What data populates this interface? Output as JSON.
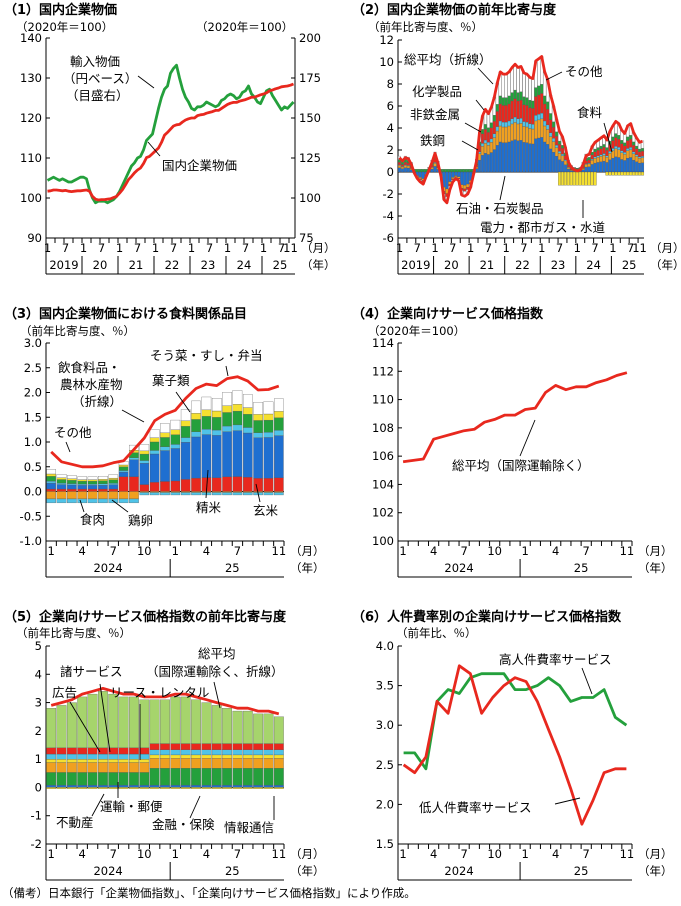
{
  "colors": {
    "red": "#e8281e",
    "green": "#24a03c",
    "blue": "#1f6fd0",
    "orange": "#f0a020",
    "cyan": "#4fc3e8",
    "yellow": "#f5e030",
    "black": "#000000"
  },
  "chart_data": [
    {
      "id": "p1",
      "type": "line",
      "title": "（1）国内企業物価",
      "left_unit": "（2020年＝100）",
      "right_unit": "（2020年＝100）",
      "ylim": [
        90,
        140
      ],
      "y_ticks": [
        "140",
        "130",
        "120",
        "110",
        "100",
        "90"
      ],
      "ylim_right": [
        75,
        200
      ],
      "y_ticks_right": [
        "200",
        "175",
        "150",
        "125",
        "100",
        "75"
      ],
      "x_month_labels": [
        "1",
        "7",
        "1",
        "7",
        "1",
        "7",
        "1",
        "7",
        "1",
        "7",
        "1",
        "7",
        "1",
        "7"
      ],
      "x_month_extra": "11",
      "x_year_labels": [
        "2019",
        "20",
        "21",
        "22",
        "23",
        "24",
        "25"
      ],
      "x_unit_month": "（月）",
      "x_unit_year": "（年）",
      "series": [
        {
          "name": "国内企業物価",
          "color": "#e8281e",
          "axis": "left",
          "values": [
            101.7,
            101.8,
            102.0,
            102.0,
            101.9,
            101.8,
            101.9,
            101.7,
            101.6,
            101.7,
            101.8,
            101.8,
            101.9,
            102.0,
            101.7,
            100.4,
            99.7,
            99.5,
            99.6,
            99.6,
            99.7,
            99.8,
            100.1,
            100.4,
            101.2,
            102.1,
            103.3,
            104.6,
            105.4,
            106.3,
            107.0,
            107.5,
            108.6,
            110.1,
            110.4,
            111.1,
            111.8,
            112.5,
            113.9,
            115.7,
            116.4,
            117.2,
            118.0,
            118.3,
            118.4,
            119.0,
            119.5,
            119.8,
            120.0,
            120.0,
            120.6,
            120.8,
            120.9,
            121.2,
            121.4,
            121.6,
            121.9,
            121.9,
            122.4,
            122.9,
            123.4,
            123.7,
            123.9,
            123.9,
            124.2,
            124.4,
            124.6,
            124.9,
            125.2,
            125.2,
            125.5,
            125.8,
            126.0,
            126.3,
            126.8,
            127.0,
            127.3,
            127.5,
            127.8,
            127.9,
            128.0,
            128.2,
            128.5
          ]
        },
        {
          "name": "輸入物価（円ベース）（目盛右）",
          "color": "#24a03c",
          "axis": "right",
          "values": [
            111,
            112,
            113,
            112,
            111,
            112,
            111,
            110,
            110,
            111,
            112,
            113,
            113,
            112,
            105,
            100,
            97,
            98,
            98,
            98,
            97,
            98,
            99,
            101,
            104,
            108,
            112,
            116,
            120,
            122,
            125,
            126,
            130,
            136,
            138,
            140,
            148,
            156,
            163,
            168,
            170,
            178,
            181,
            183,
            175,
            168,
            163,
            160,
            156,
            155,
            157,
            157,
            158,
            160,
            159,
            158,
            157,
            158,
            161,
            162,
            164,
            165,
            164,
            162,
            163,
            166,
            167,
            170,
            165,
            163,
            160,
            159,
            163,
            167,
            168,
            164,
            161,
            158,
            155,
            157,
            156,
            158,
            160
          ]
        }
      ],
      "annotations": {
        "import": [
          "輸入物価",
          "（円ベース）",
          "（目盛右）"
        ],
        "domestic": "国内企業物価"
      }
    },
    {
      "id": "p2",
      "type": "bar",
      "title": "（2）国内企業物価の前年比寄与度",
      "unit": "（前年比寄与度、％）",
      "ylim": [
        -6,
        12
      ],
      "y_ticks": [
        "12",
        "10",
        "8",
        "6",
        "4",
        "2",
        "0",
        "-2",
        "-4",
        "-6"
      ],
      "x_month_labels": [
        "1",
        "7",
        "1",
        "7",
        "1",
        "7",
        "1",
        "7",
        "1",
        "7",
        "1",
        "7",
        "1",
        "7"
      ],
      "x_month_extra": "11",
      "x_year_labels": [
        "2019",
        "20",
        "21",
        "22",
        "23",
        "24",
        "25"
      ],
      "x_unit_month": "（月）",
      "x_unit_year": "（年）",
      "segments": [
        {
          "name": "石油・石炭製品",
          "color": "#1f6fd0"
        },
        {
          "name": "化学製品",
          "color": "#f0a020"
        },
        {
          "name": "非鉄金属",
          "color": "#4fc3e8"
        },
        {
          "name": "鉄鋼",
          "color": "#e8281e"
        },
        {
          "name": "食料",
          "color": "#24a03c"
        },
        {
          "name": "電力・都市ガス・水道",
          "color": "#f5e030"
        },
        {
          "name": "その他",
          "color": "#ffffff"
        }
      ],
      "line": {
        "name": "総平均（折線）",
        "color": "#e8281e",
        "values": [
          1.3,
          1.0,
          1.3,
          1.2,
          0.7,
          -0.1,
          -0.6,
          -0.9,
          -1.1,
          -0.4,
          0.2,
          0.9,
          1.7,
          0.8,
          -0.4,
          -2.5,
          -2.8,
          -1.6,
          -0.9,
          -0.6,
          -0.8,
          -2.1,
          -2.2,
          -2.0,
          -1.4,
          -0.2,
          1.0,
          3.6,
          5.1,
          5.7,
          5.3,
          5.9,
          6.8,
          8.1,
          9.1,
          8.9,
          8.9,
          9.1,
          9.5,
          9.8,
          9.5,
          9.6,
          9.0,
          8.9,
          8.6,
          8.5,
          10.1,
          10.3,
          10.5,
          9.1,
          8.4,
          7.0,
          6.0,
          4.8,
          3.7,
          3.2,
          2.2,
          0.9,
          0.4,
          0.2,
          0.1,
          0.2,
          0.7,
          1.5,
          1.6,
          2.3,
          2.7,
          2.9,
          3.1,
          3.3,
          2.9,
          3.7,
          4.2,
          4.6,
          4.4,
          3.8,
          3.5,
          4.2,
          4.4,
          3.6,
          3.1,
          2.7,
          2.8
        ]
      },
      "annotations": [
        "総平均（折線）",
        "その他",
        "化学製品",
        "非鉄金属",
        "鉄鋼",
        "食料",
        "石油・石炭製品",
        "電力・都市ガス・水道"
      ]
    },
    {
      "id": "p3",
      "type": "bar",
      "title": "（3）国内企業物価における食料関係品目",
      "unit": "（前年比寄与度、％）",
      "ylim": [
        -1.0,
        3.0
      ],
      "y_ticks": [
        "3.0",
        "2.5",
        "2.0",
        "1.5",
        "1.0",
        "0.5",
        "0.0",
        "-0.5",
        "-1.0"
      ],
      "x_month_labels": [
        "1",
        "4",
        "7",
        "10",
        "1",
        "4",
        "7",
        "11"
      ],
      "x_year_labels": [
        "2024",
        "25"
      ],
      "x_unit_month": "（月）",
      "x_unit_year": "（年）",
      "segments": [
        {
          "name": "精米",
          "color": "#e8281e"
        },
        {
          "name": "玄米",
          "color": "#1f6fd0"
        },
        {
          "name": "鶏卵",
          "color": "#f0a020"
        },
        {
          "name": "食肉",
          "color": "#4fc3e8"
        },
        {
          "name": "菓子類",
          "color": "#24a03c"
        },
        {
          "name": "そう菜・すし・弁当",
          "color": "#f5e030"
        },
        {
          "name": "その他",
          "color": "#ffffff"
        }
      ],
      "line": {
        "name": "飲食料品・農林水産物（折線）",
        "color": "#e8281e",
        "values": [
          0.8,
          0.6,
          0.55,
          0.5,
          0.5,
          0.52,
          0.58,
          0.62,
          0.85,
          1.08,
          1.43,
          1.56,
          1.64,
          1.88,
          2.08,
          2.17,
          2.14,
          2.28,
          2.32,
          2.23,
          2.05,
          2.06,
          2.13
        ]
      },
      "annotations": [
        "そう菜・すし・弁当",
        "飲食料品・",
        "農林水産物",
        "（折線）",
        "菓子類",
        "その他",
        "精米",
        "玄米",
        "食肉",
        "鶏卵"
      ]
    },
    {
      "id": "p4",
      "type": "line",
      "title": "（4）企業向けサービス価格指数",
      "unit": "（2020年＝100）",
      "ylim": [
        100,
        114
      ],
      "y_ticks": [
        "114",
        "112",
        "110",
        "108",
        "106",
        "104",
        "102",
        "100"
      ],
      "x_month_labels": [
        "1",
        "4",
        "7",
        "10",
        "1",
        "4",
        "7",
        "11"
      ],
      "x_year_labels": [
        "2024",
        "25"
      ],
      "x_unit_month": "（月）",
      "x_unit_year": "（年）",
      "series": [
        {
          "name": "総平均（国際運輸除く）",
          "color": "#e8281e",
          "values": [
            105.6,
            105.7,
            105.8,
            107.2,
            107.4,
            107.6,
            107.8,
            107.9,
            108.4,
            108.6,
            108.9,
            108.9,
            109.3,
            109.4,
            110.5,
            111.0,
            110.7,
            110.9,
            110.9,
            111.2,
            111.4,
            111.7,
            111.9
          ]
        }
      ],
      "annotations": [
        "総平均（国際運輸除く）"
      ]
    },
    {
      "id": "p5",
      "type": "bar",
      "title": "（5）企業向けサービス価格指数の前年比寄与度",
      "unit": "（前年比寄与度、％）",
      "ylim": [
        -2,
        5
      ],
      "y_ticks": [
        "5",
        "4",
        "3",
        "2",
        "1",
        "0",
        "-1",
        "-2"
      ],
      "x_month_labels": [
        "1",
        "4",
        "7",
        "10",
        "1",
        "4",
        "7",
        "11"
      ],
      "x_year_labels": [
        "2024",
        "25"
      ],
      "x_unit_month": "（月）",
      "x_unit_year": "（年）",
      "segments": [
        {
          "name": "金融・保険",
          "color": "#1f6fd0"
        },
        {
          "name": "運輸・郵便",
          "color": "#24a03c"
        },
        {
          "name": "不動産",
          "color": "#f0a020"
        },
        {
          "name": "情報通信",
          "color": "#f5e030"
        },
        {
          "name": "広告",
          "color": "#4fc3e8"
        },
        {
          "name": "リース・レンタル",
          "color": "#e8281e"
        },
        {
          "name": "諸サービス",
          "color": "#a6d46c"
        }
      ],
      "line": {
        "name": "総平均（国際運輸除く、折線）",
        "color": "#e8281e",
        "values": [
          2.9,
          3.0,
          3.1,
          3.3,
          3.4,
          3.5,
          3.4,
          3.3,
          3.3,
          3.2,
          3.2,
          3.2,
          3.3,
          3.3,
          3.2,
          3.1,
          3.0,
          2.9,
          2.8,
          2.8,
          2.7,
          2.7,
          2.6
        ]
      },
      "annotations": [
        "総平均",
        "（国際運輸除く、折線）",
        "諸サービス",
        "広告",
        "リース・レンタル",
        "運輸・郵便",
        "不動産",
        "金融・保険",
        "情報通信"
      ]
    },
    {
      "id": "p6",
      "type": "line",
      "title": "（6）人件費率別の企業向けサービス価格指数",
      "unit": "（前年比、％）",
      "ylim": [
        1.5,
        4.0
      ],
      "y_ticks": [
        "4.0",
        "3.5",
        "3.0",
        "2.5",
        "2.0",
        "1.5"
      ],
      "x_month_labels": [
        "1",
        "4",
        "7",
        "10",
        "1",
        "4",
        "7",
        "11"
      ],
      "x_year_labels": [
        "2024",
        "25"
      ],
      "x_unit_month": "（月）",
      "x_unit_year": "（年）",
      "series": [
        {
          "name": "高人件費率サービス",
          "color": "#24a03c",
          "values": [
            2.65,
            2.65,
            2.45,
            3.3,
            3.45,
            3.4,
            3.6,
            3.65,
            3.65,
            3.65,
            3.45,
            3.45,
            3.5,
            3.6,
            3.5,
            3.3,
            3.35,
            3.35,
            3.45,
            3.1,
            3.0
          ]
        },
        {
          "name": "低人件費率サービス",
          "color": "#e8281e",
          "values": [
            2.5,
            2.4,
            2.6,
            3.3,
            3.15,
            3.75,
            3.65,
            3.15,
            3.35,
            3.5,
            3.6,
            3.55,
            3.3,
            2.95,
            2.6,
            2.2,
            1.75,
            2.05,
            2.4,
            2.45,
            2.45
          ]
        }
      ],
      "annotations": [
        "高人件費率サービス",
        "低人件費率サービス"
      ]
    }
  ],
  "footnote": "（備考）日本銀行「企業物価指数」、「企業向けサービス価格指数」により作成。"
}
